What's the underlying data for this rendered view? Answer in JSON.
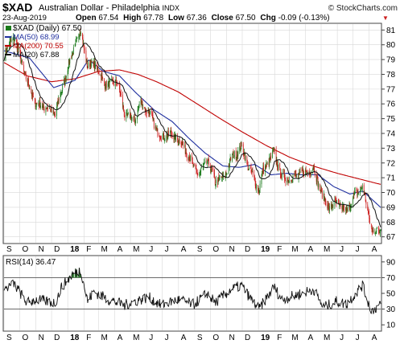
{
  "header": {
    "symbol": "$XAD",
    "name": "Australian Dollar - Philadelphia",
    "exchange": "INDX",
    "credit": "© StockCharts.com",
    "date": "23-Aug-2019",
    "open_label": "Open",
    "open": "67.54",
    "high_label": "High",
    "high": "67.78",
    "low_label": "Low",
    "low": "67.36",
    "close_label": "Close",
    "close": "67.50",
    "chg_label": "Chg",
    "chg": "-0.09 (-0.13%)",
    "chg_arrow": "▼"
  },
  "legend": {
    "price": "$XAD (Daily) 67.50",
    "ma50": "MA(50) 68.99",
    "ma200": "MA(200) 70.55",
    "ma20": "MA(20) 67.88"
  },
  "rsi_label": "RSI(14) 36.47",
  "colors": {
    "up": "#1a7a1a",
    "down": "#cc1f1f",
    "ma50": "#1f2f9f",
    "ma200": "#c00000",
    "ma20": "#111111",
    "grid": "#d8d8d8",
    "text": "#000000"
  },
  "chart_data": [
    {
      "type": "candlestick",
      "title": "$XAD (Daily) 67.50",
      "ylim": [
        66.6,
        81.4
      ],
      "y_ticks": [
        67,
        68,
        69,
        70,
        71,
        72,
        73,
        74,
        75,
        76,
        77,
        78,
        79,
        80,
        81
      ],
      "x_tick_labels": [
        "S",
        "O",
        "N",
        "D",
        "18",
        "F",
        "M",
        "A",
        "M",
        "J",
        "J",
        "A",
        "S",
        "O",
        "N",
        "D",
        "19",
        "F",
        "M",
        "A",
        "M",
        "J",
        "J",
        "A"
      ],
      "x_bold_labels": [
        "18",
        "19"
      ],
      "grid": true,
      "legend_position": "top-left",
      "close_anchors": {
        "x": [
          "2017-09-01",
          "2017-09-20",
          "2017-10-15",
          "2017-11-01",
          "2017-11-20",
          "2017-12-08",
          "2017-12-20",
          "2018-01-10",
          "2018-01-26",
          "2018-02-08",
          "2018-02-20",
          "2018-03-05",
          "2018-03-20",
          "2018-04-05",
          "2018-04-20",
          "2018-05-09",
          "2018-05-20",
          "2018-06-05",
          "2018-06-28",
          "2018-07-15",
          "2018-07-31",
          "2018-08-15",
          "2018-08-30",
          "2018-09-10",
          "2018-09-25",
          "2018-10-10",
          "2018-10-26",
          "2018-11-10",
          "2018-11-30",
          "2018-12-15",
          "2019-01-02",
          "2019-01-10",
          "2019-01-31",
          "2019-02-15",
          "2019-03-01",
          "2019-03-15",
          "2019-04-01",
          "2019-04-17",
          "2019-05-05",
          "2019-05-17",
          "2019-05-31",
          "2019-06-18",
          "2019-07-05",
          "2019-07-19",
          "2019-08-01",
          "2019-08-07",
          "2019-08-23"
        ],
        "y": [
          79.3,
          80.6,
          77.5,
          76.0,
          75.8,
          75.3,
          76.9,
          79.5,
          81.0,
          78.5,
          78.8,
          77.8,
          77.2,
          77.6,
          75.3,
          74.9,
          76.1,
          75.4,
          73.7,
          74.0,
          73.6,
          72.9,
          71.7,
          71.2,
          72.2,
          70.8,
          70.9,
          72.3,
          73.1,
          71.5,
          70.2,
          71.5,
          72.7,
          71.0,
          70.9,
          71.1,
          71.4,
          71.6,
          69.6,
          69.0,
          69.3,
          68.7,
          69.8,
          70.4,
          68.3,
          67.3,
          67.5
        ]
      },
      "ma50_anchors": {
        "x": [
          "2017-09-01",
          "2017-10-20",
          "2017-12-05",
          "2018-01-15",
          "2018-02-10",
          "2018-03-10",
          "2018-04-10",
          "2018-05-10",
          "2018-06-15",
          "2018-07-20",
          "2018-08-20",
          "2018-09-20",
          "2018-10-25",
          "2018-11-25",
          "2018-12-25",
          "2019-01-25",
          "2019-02-25",
          "2019-03-25",
          "2019-04-25",
          "2019-05-25",
          "2019-06-25",
          "2019-07-20",
          "2019-08-23"
        ],
        "y": [
          79.6,
          79.1,
          77.1,
          77.6,
          79.0,
          78.2,
          77.9,
          76.8,
          75.6,
          74.8,
          73.7,
          72.7,
          71.8,
          71.7,
          71.9,
          71.2,
          71.3,
          71.2,
          71.2,
          70.4,
          69.9,
          70.1,
          68.99
        ]
      },
      "ma200_anchors": {
        "x": [
          "2017-09-01",
          "2017-10-15",
          "2017-12-01",
          "2018-01-15",
          "2018-03-01",
          "2018-04-10",
          "2018-05-15",
          "2018-06-20",
          "2018-08-01",
          "2018-09-10",
          "2018-10-20",
          "2018-12-01",
          "2019-01-15",
          "2019-03-01",
          "2019-04-15",
          "2019-06-01",
          "2019-07-15",
          "2019-08-23"
        ],
        "y": [
          78.8,
          77.9,
          77.5,
          77.7,
          78.2,
          78.3,
          78.0,
          77.5,
          76.8,
          75.9,
          75.0,
          74.1,
          73.2,
          72.4,
          71.8,
          71.3,
          70.9,
          70.55
        ]
      },
      "ma20_reported": 67.88
    },
    {
      "type": "line",
      "title": "RSI(14) 36.47",
      "ylim": [
        3,
        97
      ],
      "y_ticks": [
        10,
        30,
        50,
        70,
        90
      ],
      "reference_lines": [
        30,
        70
      ],
      "last_value": 36.47,
      "anchors": {
        "x": [
          "2017-09-01",
          "2017-09-20",
          "2017-10-15",
          "2017-11-01",
          "2017-11-20",
          "2017-12-08",
          "2017-12-20",
          "2018-01-10",
          "2018-01-26",
          "2018-02-08",
          "2018-02-20",
          "2018-03-20",
          "2018-04-20",
          "2018-05-09",
          "2018-06-05",
          "2018-06-28",
          "2018-07-31",
          "2018-08-30",
          "2018-09-25",
          "2018-10-10",
          "2018-11-10",
          "2018-11-30",
          "2018-12-15",
          "2019-01-02",
          "2019-01-31",
          "2019-02-15",
          "2019-03-15",
          "2019-04-17",
          "2019-05-05",
          "2019-05-31",
          "2019-06-18",
          "2019-07-19",
          "2019-08-01",
          "2019-08-07",
          "2019-08-23"
        ],
        "y": [
          55,
          62,
          38,
          42,
          40,
          38,
          58,
          74,
          80,
          40,
          52,
          42,
          35,
          40,
          45,
          35,
          42,
          36,
          50,
          38,
          55,
          60,
          45,
          30,
          58,
          42,
          48,
          55,
          32,
          40,
          36,
          60,
          35,
          28,
          36.47
        ]
      }
    }
  ]
}
